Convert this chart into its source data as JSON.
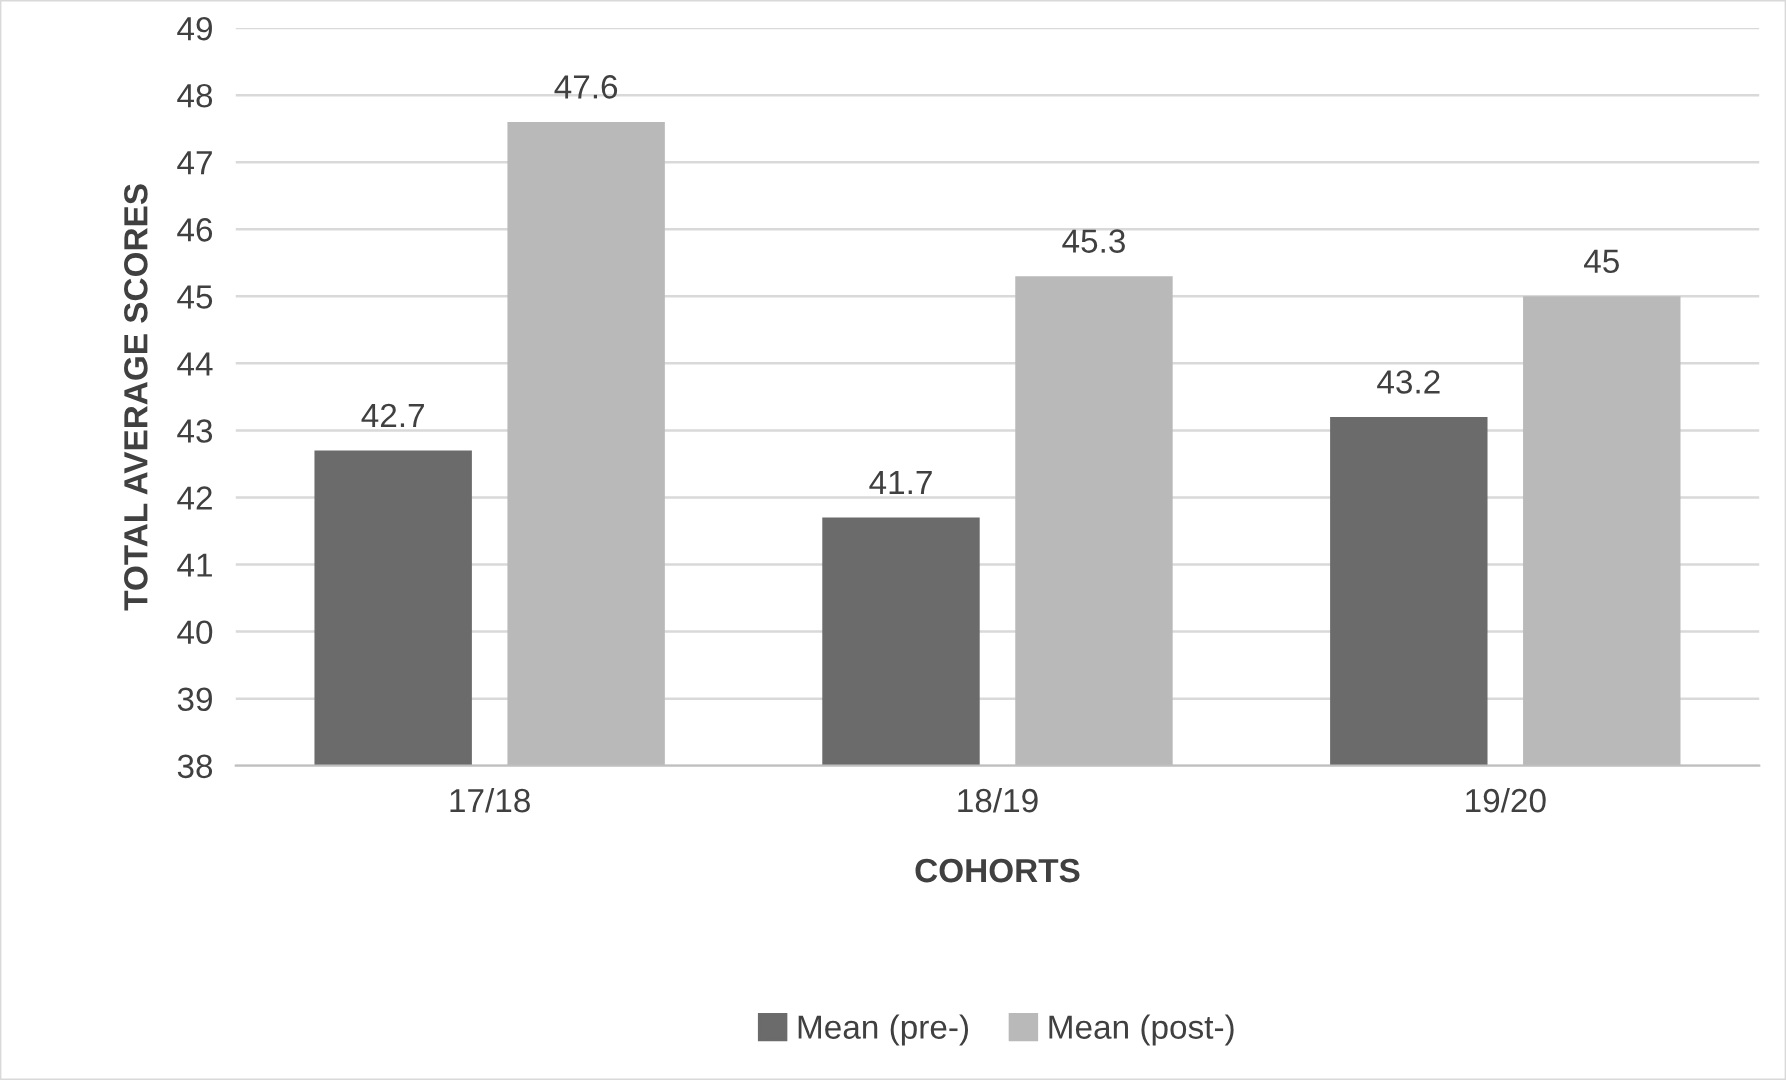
{
  "chart_data": {
    "type": "bar",
    "xlabel": "COHORTS",
    "ylabel": "TOTAL AVERAGE SCORES",
    "categories": [
      "17/18",
      "18/19",
      "19/20"
    ],
    "series": [
      {
        "name": "Mean (pre-)",
        "color": "#6b6b6b",
        "values": [
          42.7,
          41.7,
          43.2
        ]
      },
      {
        "name": "Mean (post-)",
        "color": "#b9b9b9",
        "values": [
          47.6,
          45.3,
          45
        ]
      }
    ],
    "ylim": [
      38,
      49
    ],
    "yticks": [
      38,
      39,
      40,
      41,
      42,
      43,
      44,
      45,
      46,
      47,
      48,
      49
    ],
    "grid": "y",
    "legend": "bottom",
    "data_labels": true
  }
}
